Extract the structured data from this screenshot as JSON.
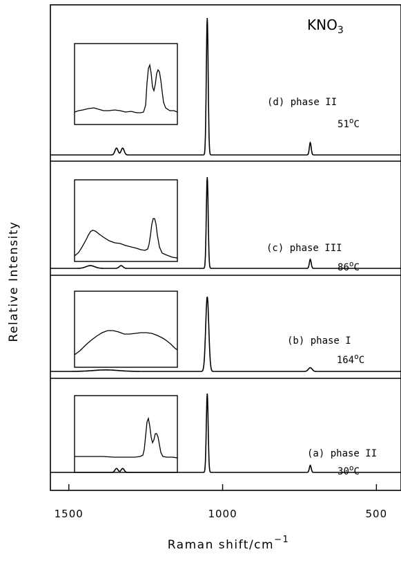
{
  "chart_data": {
    "type": "line",
    "title": "KNO",
    "title_subscript": "3",
    "xlabel": "Raman shift/cm",
    "xlabel_superscript": "−1",
    "ylabel": "Relative Intensity",
    "xlim": [
      1560,
      420
    ],
    "x_ticks": [
      1500,
      1000,
      500
    ],
    "x_ticklabels": [
      "1500",
      "1000",
      "500"
    ],
    "grid": false,
    "series": [
      {
        "label": "(d) phase II",
        "temperature": "51°C",
        "temp_value": "51",
        "temp_unit": "C",
        "peaks": [
          {
            "x": 1345,
            "height": 0.05,
            "width": 5
          },
          {
            "x": 1325,
            "height": 0.05,
            "width": 5
          },
          {
            "x": 1050,
            "height": 1.0,
            "width": 3
          },
          {
            "x": 715,
            "height": 0.09,
            "width": 3
          }
        ],
        "inset_shape": "two sharp peaks right, weak broad band left"
      },
      {
        "label": "(c) phase III",
        "temperature": "86°C",
        "temp_value": "86",
        "temp_unit": "C",
        "peaks": [
          {
            "x": 1430,
            "height": 0.03,
            "width": 14
          },
          {
            "x": 1330,
            "height": 0.03,
            "width": 6
          },
          {
            "x": 1050,
            "height": 1.0,
            "width": 3
          },
          {
            "x": 715,
            "height": 0.1,
            "width": 3
          }
        ],
        "inset_shape": "broad band left, sharp peak right"
      },
      {
        "label": "(b) phase I",
        "temperature": "164°C",
        "temp_value": "164",
        "temp_unit": "C",
        "peaks": [
          {
            "x": 1380,
            "height": 0.02,
            "width": 40
          },
          {
            "x": 1050,
            "height": 1.0,
            "width": 5
          },
          {
            "x": 715,
            "height": 0.05,
            "width": 6
          }
        ],
        "inset_shape": "single broad band"
      },
      {
        "label": "(a) phase II",
        "temperature": "30°C",
        "temp_value": "30",
        "temp_unit": "C",
        "peaks": [
          {
            "x": 1345,
            "height": 0.05,
            "width": 5
          },
          {
            "x": 1325,
            "height": 0.05,
            "width": 5
          },
          {
            "x": 1050,
            "height": 1.0,
            "width": 3
          },
          {
            "x": 715,
            "height": 0.09,
            "width": 3
          }
        ],
        "inset_shape": "two sharp peaks right, flat left"
      }
    ]
  }
}
